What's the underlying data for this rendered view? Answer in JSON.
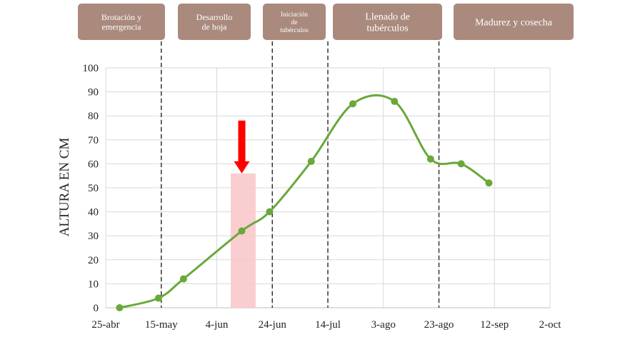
{
  "colors": {
    "stage_box": "#a98a7d",
    "stage_text": "#ffffff",
    "line": "#6aa83a",
    "highlight": "#f9c6c8",
    "arrow": "#ff0000",
    "grid": "#d9d9d9",
    "divider": "#333333"
  },
  "stages": [
    {
      "lines": [
        "Brotación y",
        "emergencia"
      ]
    },
    {
      "lines": [
        "Desarrollo",
        "de hoja"
      ]
    },
    {
      "lines": [
        "Iniciación",
        "de",
        "tubérculos"
      ]
    },
    {
      "lines": [
        "Llenado de",
        "tubérculos"
      ]
    },
    {
      "lines": [
        "Madurez y cosecha"
      ]
    }
  ],
  "chart_data": {
    "type": "line",
    "title": "",
    "xlabel": "",
    "ylabel": "ALTURA EN CM",
    "ylim": [
      0,
      100
    ],
    "yticks": [
      0,
      10,
      20,
      30,
      40,
      50,
      60,
      70,
      80,
      90,
      100
    ],
    "xticks": [
      "25-abr",
      "15-may",
      "4-jun",
      "24-jun",
      "14-jul",
      "3-ago",
      "23-ago",
      "12-sep",
      "2-oct"
    ],
    "xlim": [
      "25-abr",
      "2-oct"
    ],
    "grid": "vertical and horizontal",
    "smooth": true,
    "series": [
      {
        "x": [
          "30-abr",
          "14-may",
          "23-may",
          "13-jun",
          "23-jun",
          "8-jul",
          "23-jul",
          "7-ago",
          "20-ago",
          "31-ago",
          "10-sep"
        ],
        "values": [
          0,
          4,
          12,
          32,
          40,
          61,
          85,
          86,
          62,
          60,
          52
        ]
      }
    ],
    "stage_dividers": [
      "15-may",
      "24-jun",
      "14-jul",
      "23-ago"
    ],
    "highlight_range": {
      "from": "9-jun",
      "to": "18-jun",
      "y_max": 56
    },
    "arrow": {
      "at": "13-jun",
      "from_y": 78,
      "to_y": 56
    }
  }
}
